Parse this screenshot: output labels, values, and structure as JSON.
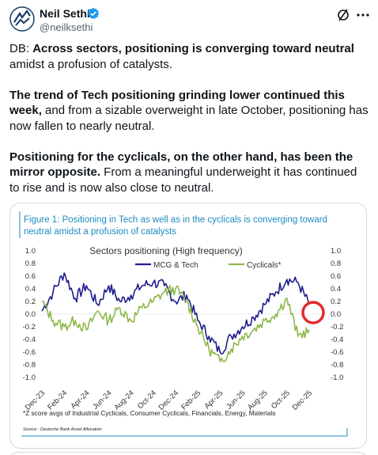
{
  "author": {
    "name": "Neil Sethi",
    "handle": "@neilksethi",
    "verified": true
  },
  "icons": {
    "avatar": "avatar-logo-icon",
    "verified": "verified-badge-icon",
    "grok": "grok-icon",
    "more": "more-icon"
  },
  "tweet": {
    "p1_prefix": "DB: ",
    "p1_bold": "Across sectors, positioning is converging toward neutral",
    "p1_rest": " amidst a profusion of catalysts.",
    "p2_bold": "The trend of Tech positioning grinding lower continued this week,",
    "p2_rest": " and from a sizable overweight in late October, positioning has now fallen to nearly neutral.",
    "p3_bold": "Positioning for the cyclicals, on the other hand, has been the mirror opposite.",
    "p3_rest": " From a meaningful underweight it has continued to rise and is now also close to neutral."
  },
  "chart_data": {
    "type": "line",
    "figure_caption": "Figure 1: Positioning in Tech as well as in the cyclicals is converging toward neutral amidst a profusion of catalysts",
    "title": "Sectors positioning (High frequency)",
    "x_ticks": [
      "Dec-23",
      "Feb-24",
      "Apr-24",
      "Jun-24",
      "Aug-24",
      "Oct-24",
      "Dec-24",
      "Feb-25",
      "Apr-25",
      "Jun-25",
      "Aug-25",
      "Oct-25",
      "Dec-25"
    ],
    "x_range": [
      "2023-12",
      "2026-01"
    ],
    "ylim": [
      -1.0,
      1.0
    ],
    "y_ticks": [
      "1.0",
      "0.8",
      "0.6",
      "0.4",
      "0.2",
      "0.0",
      "-0.2",
      "-0.4",
      "-0.6",
      "-0.8",
      "-1.0"
    ],
    "legend_position": "top-center",
    "footnote": "*Z score avgs of Industrial Cyclicals, Consumer Cyclicals, Financials, Energy, Materials",
    "source": "Source : Deutsche Bank Asset Allocation",
    "series": [
      {
        "name": "MCG & Tech",
        "color": "#1f1f8c",
        "x": [
          "2023-12",
          "2024-01",
          "2024-02",
          "2024-03",
          "2024-04",
          "2024-05",
          "2024-06",
          "2024-07",
          "2024-08",
          "2024-09",
          "2024-10",
          "2024-11",
          "2024-12",
          "2025-01",
          "2025-02",
          "2025-03",
          "2025-04",
          "2025-05",
          "2025-06",
          "2025-07",
          "2025-08",
          "2025-09",
          "2025-10",
          "2025-11",
          "2025-12"
        ],
        "values": [
          0.05,
          0.35,
          0.65,
          0.25,
          0.45,
          0.15,
          0.45,
          0.2,
          0.3,
          0.45,
          0.5,
          0.45,
          0.2,
          0.3,
          -0.1,
          -0.35,
          -0.6,
          -0.35,
          -0.2,
          -0.05,
          0.15,
          0.35,
          0.55,
          0.5,
          0.15
        ]
      },
      {
        "name": "Cyclicals*",
        "color": "#8db84a",
        "x": [
          "2023-12",
          "2024-01",
          "2024-02",
          "2024-03",
          "2024-04",
          "2024-05",
          "2024-06",
          "2024-07",
          "2024-08",
          "2024-09",
          "2024-10",
          "2024-11",
          "2024-12",
          "2025-01",
          "2025-02",
          "2025-03",
          "2025-04",
          "2025-05",
          "2025-06",
          "2025-07",
          "2025-08",
          "2025-09",
          "2025-10",
          "2025-11",
          "2025-12"
        ],
        "values": [
          0.2,
          -0.1,
          -0.2,
          -0.1,
          -0.25,
          0.05,
          -0.1,
          0.1,
          -0.1,
          0.1,
          0.2,
          0.35,
          0.4,
          0.2,
          -0.2,
          -0.55,
          -0.75,
          -0.55,
          -0.35,
          -0.25,
          -0.1,
          0.0,
          0.25,
          -0.35,
          -0.25
        ]
      }
    ],
    "annotation": "red circle at latest point"
  }
}
